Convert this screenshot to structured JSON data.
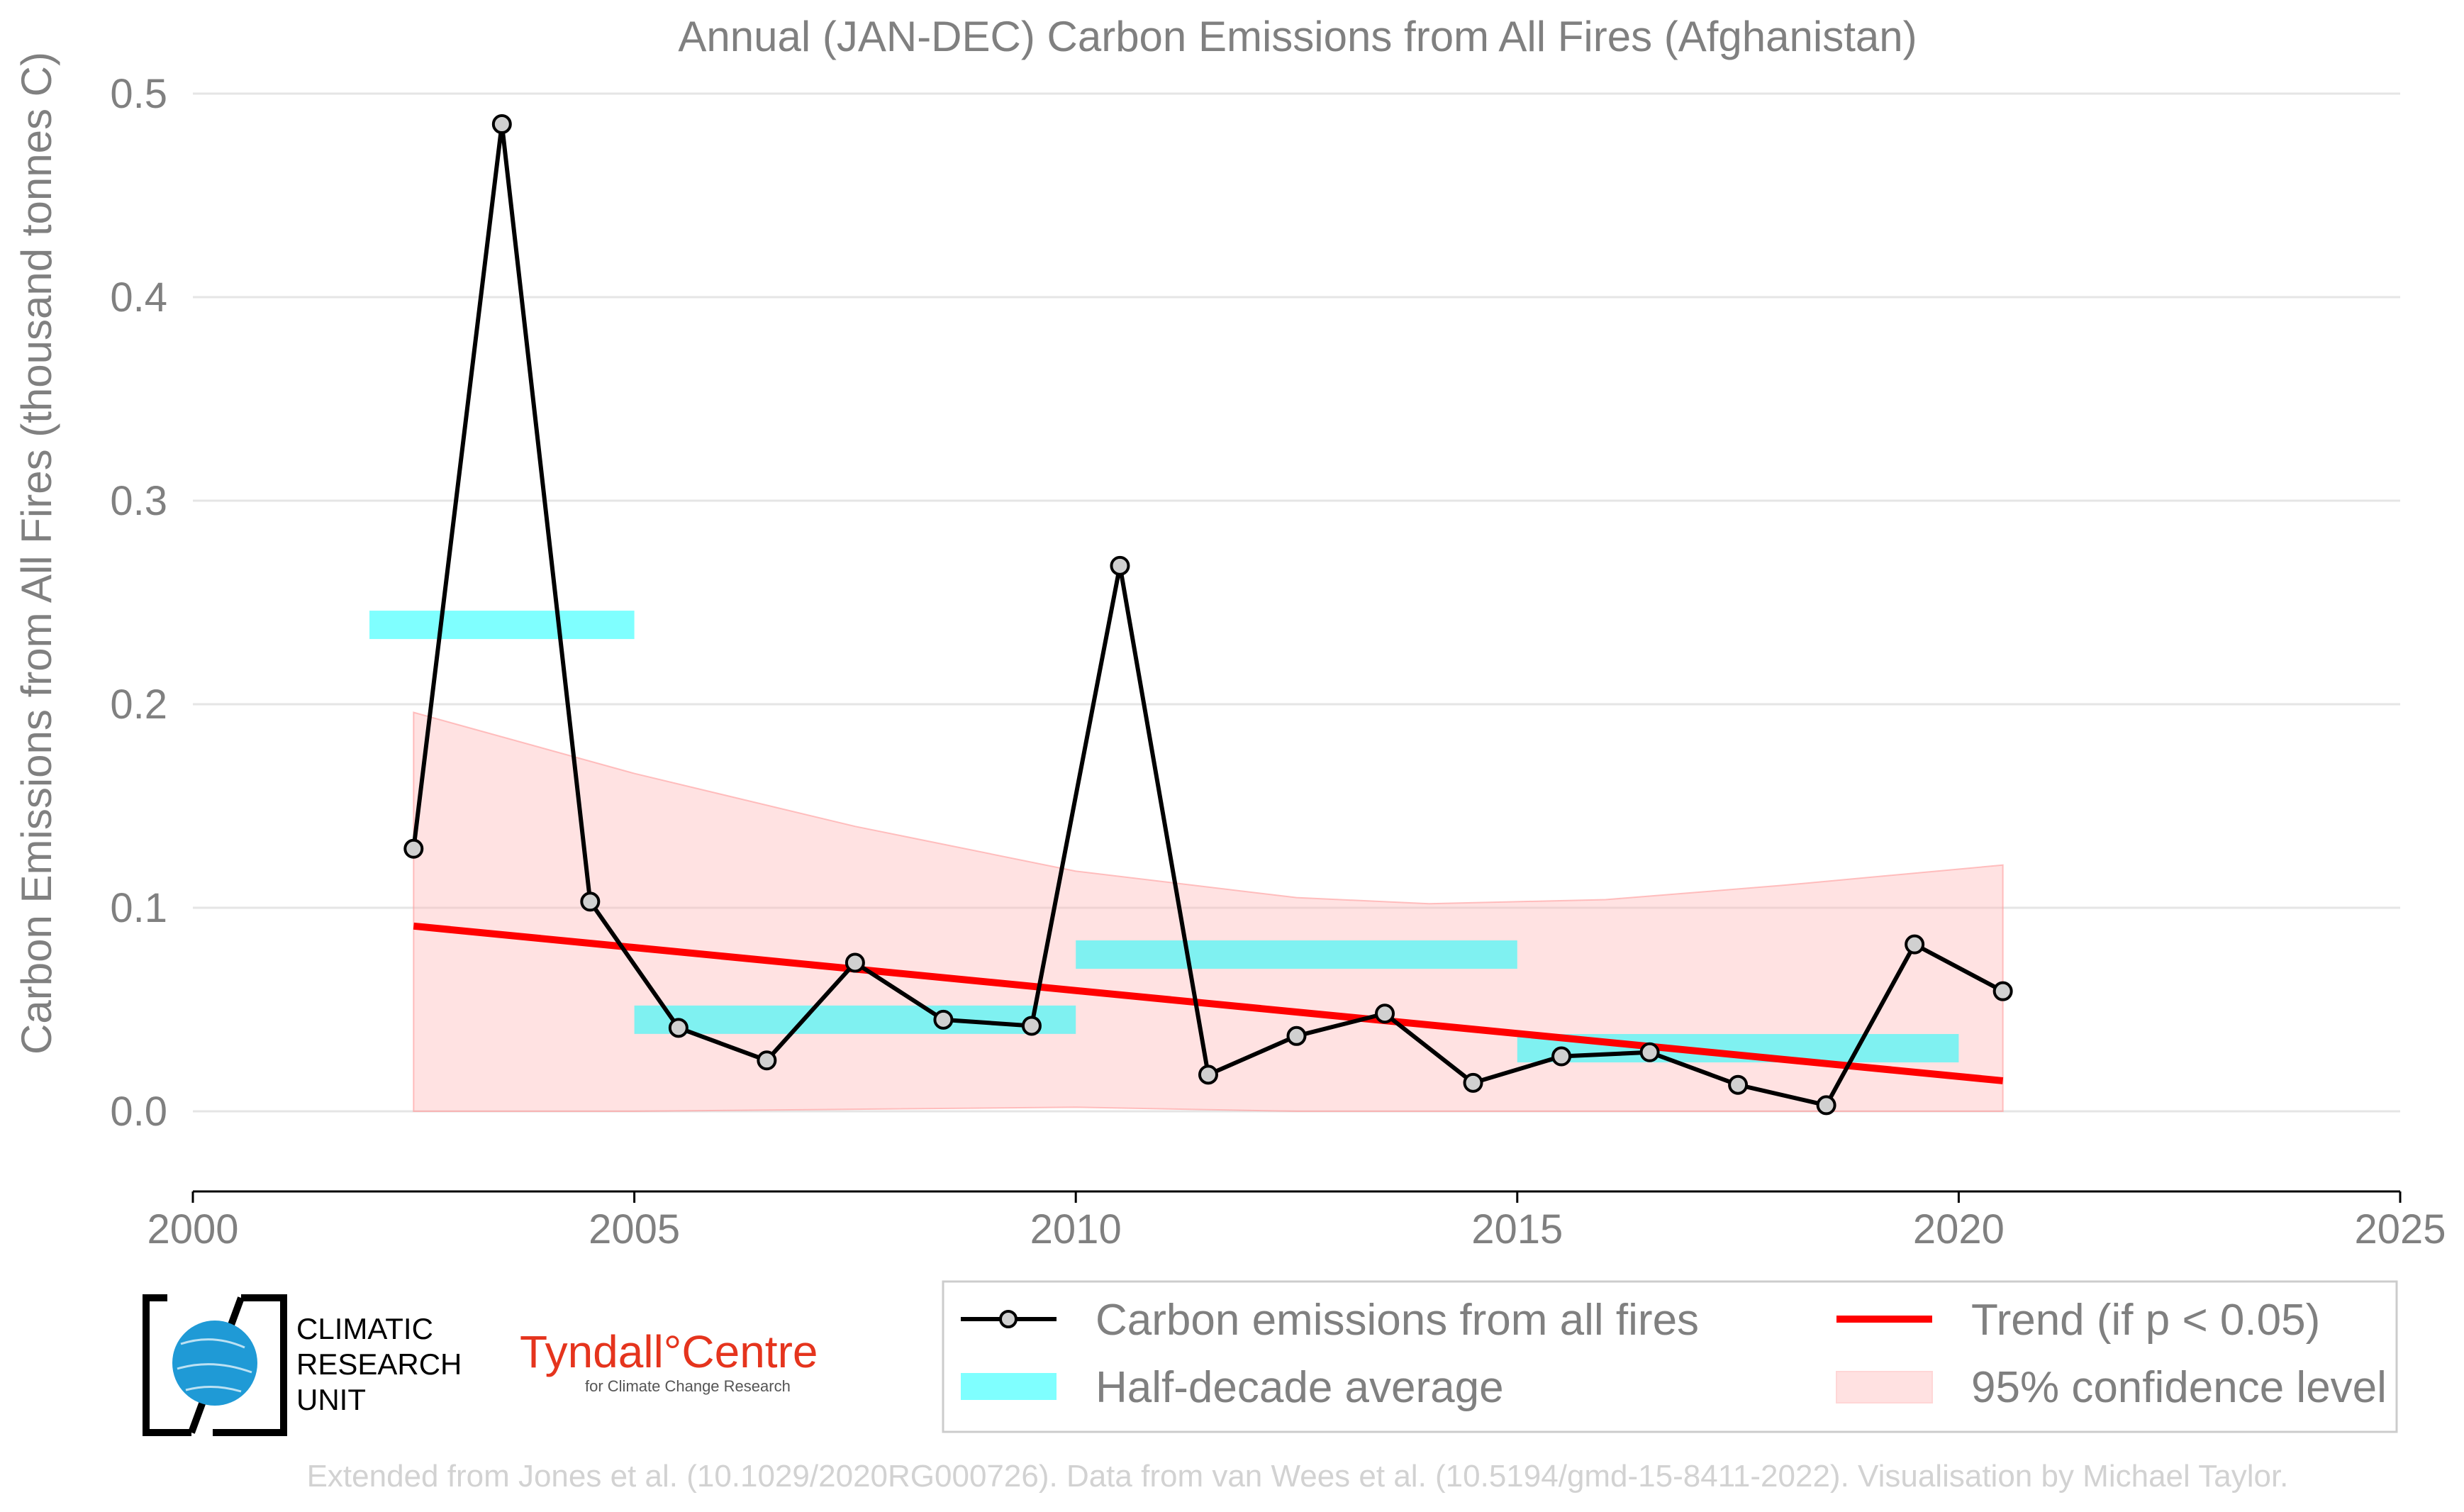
{
  "chart_data": {
    "type": "line",
    "title": "Annual (JAN-DEC) Carbon Emissions from All Fires (Afghanistan)",
    "xlabel": "",
    "ylabel": "Carbon Emissions from All Fires (thousand tonnes C)",
    "xlim": [
      2000,
      2025
    ],
    "ylim": [
      0,
      0.5
    ],
    "x_ticks": [
      "2000",
      "2005",
      "2010",
      "2015",
      "2020",
      "2025"
    ],
    "y_ticks": [
      "0.0",
      "0.1",
      "0.2",
      "0.3",
      "0.4",
      "0.5"
    ],
    "grid": "horizontal",
    "legend_position": "bottom-right",
    "series": [
      {
        "name": "Carbon emissions from all fires",
        "color": "#000000",
        "x": [
          2002.5,
          2003.5,
          2004.5,
          2005.5,
          2006.5,
          2007.5,
          2008.5,
          2009.5,
          2010.5,
          2011.5,
          2012.5,
          2013.5,
          2014.5,
          2015.5,
          2016.5,
          2017.5,
          2018.5,
          2019.5,
          2020.5
        ],
        "values": [
          0.129,
          0.485,
          0.103,
          0.041,
          0.025,
          0.073,
          0.045,
          0.042,
          0.268,
          0.018,
          0.037,
          0.048,
          0.014,
          0.027,
          0.029,
          0.013,
          0.003,
          0.082,
          0.059
        ]
      },
      {
        "name": "Half-decade average",
        "color": "#00ffff",
        "segments": [
          {
            "x_start": 2002.0,
            "x_end": 2005.0,
            "value": 0.239
          },
          {
            "x_start": 2005.0,
            "x_end": 2010.0,
            "value": 0.045
          },
          {
            "x_start": 2010.0,
            "x_end": 2015.0,
            "value": 0.077
          },
          {
            "x_start": 2015.0,
            "x_end": 2020.0,
            "value": 0.031
          }
        ]
      },
      {
        "name": "Trend (if p < 0.05)",
        "color": "#ff0000",
        "x": [
          2002.5,
          2020.5
        ],
        "values": [
          0.091,
          0.015
        ]
      },
      {
        "name": "95% confidence level",
        "color": "#ffb6b6",
        "x": [
          2002.5,
          2005.0,
          2007.5,
          2010.0,
          2012.5,
          2014.0,
          2016.0,
          2018.0,
          2020.5
        ],
        "upper": [
          0.196,
          0.166,
          0.14,
          0.118,
          0.105,
          0.102,
          0.104,
          0.111,
          0.121
        ],
        "lower": [
          0.0,
          0.0,
          0.001,
          0.002,
          0.0,
          0.0,
          0.0,
          0.0,
          0.0
        ]
      }
    ]
  },
  "logos": {
    "cru_lines": [
      "CLIMATIC",
      "RESEARCH",
      "UNIT"
    ],
    "tyndall_main": "Tyndall°Centre",
    "tyndall_sub": "for Climate Change Research"
  },
  "credit": "Extended from Jones et al. (10.1029/2020RG000726). Data from van Wees et al. (10.5194/gmd-15-8411-2022). Visualisation by Michael Taylor."
}
